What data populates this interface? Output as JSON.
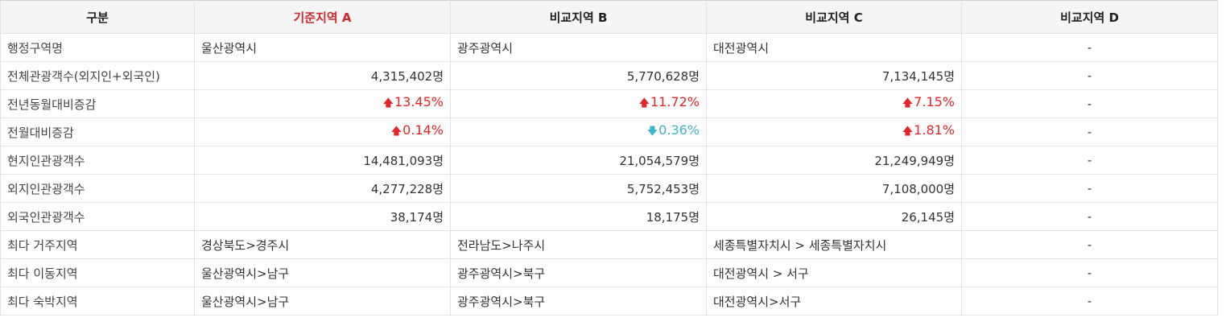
{
  "colors": {
    "accent": "#d0282d",
    "up": "#e52528",
    "down": "#3bb3c9"
  },
  "header": {
    "category": "구분",
    "region_a": "기준지역 A",
    "region_b": "비교지역 B",
    "region_c": "비교지역 C",
    "region_d": "비교지역 D"
  },
  "rows": {
    "admin_name": {
      "label": "행정구역명",
      "a": "울산광역시",
      "b": "광주광역시",
      "c": "대전광역시",
      "d": "-"
    },
    "total_visitors": {
      "label": "전체관광객수(외지인+외국인)",
      "a": "4,315,402명",
      "b": "5,770,628명",
      "c": "7,134,145명",
      "d": "-"
    },
    "yoy_change": {
      "label": "전년동월대비증감",
      "a": {
        "value": "13.45%",
        "direction": "up",
        "icon": "up-arrow-icon"
      },
      "b": {
        "value": "11.72%",
        "direction": "up",
        "icon": "up-arrow-icon"
      },
      "c": {
        "value": "7.15%",
        "direction": "up",
        "icon": "up-arrow-icon"
      },
      "d": "-"
    },
    "mom_change": {
      "label": "전월대비증감",
      "a": {
        "value": "0.14%",
        "direction": "up",
        "icon": "up-arrow-icon"
      },
      "b": {
        "value": "0.36%",
        "direction": "down",
        "icon": "down-arrow-icon"
      },
      "c": {
        "value": "1.81%",
        "direction": "up",
        "icon": "up-arrow-icon"
      },
      "d": "-"
    },
    "local_visitors": {
      "label": "현지인관광객수",
      "a": "14,481,093명",
      "b": "21,054,579명",
      "c": "21,249,949명",
      "d": "-"
    },
    "outside_visitors": {
      "label": "외지인관광객수",
      "a": "4,277,228명",
      "b": "5,752,453명",
      "c": "7,108,000명",
      "d": "-"
    },
    "foreign_visitors": {
      "label": "외국인관광객수",
      "a": "38,174명",
      "b": "18,175명",
      "c": "26,145명",
      "d": "-"
    },
    "top_residence": {
      "label": "최다 거주지역",
      "a": "경상북도>경주시",
      "b": "전라남도>나주시",
      "c": "세종특별자치시 > 세종특별자치시",
      "d": "-"
    },
    "top_movement": {
      "label": "최다 이동지역",
      "a": "울산광역시>남구",
      "b": "광주광역시>북구",
      "c": "대전광역시 > 서구",
      "d": "-"
    },
    "top_stay": {
      "label": "최다 숙박지역",
      "a": "울산광역시>남구",
      "b": "광주광역시>북구",
      "c": "대전광역시>서구",
      "d": "-"
    }
  }
}
